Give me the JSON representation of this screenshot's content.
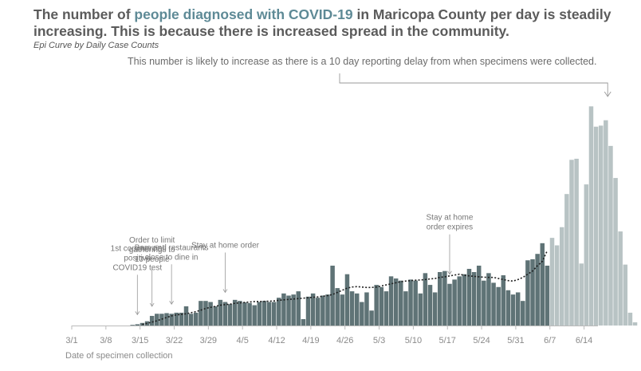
{
  "header": {
    "headline_pre": "The number of ",
    "headline_highlight": "people diagnosed with COVID-19",
    "headline_post": " in Maricopa County per day is steadily increasing. This is because there is increased spread in the community.",
    "subtitle": "Epi Curve by Daily Case Counts",
    "delay_note": "This number is likely to increase as there is a 10 day reporting delay from when specimens were collected."
  },
  "colors": {
    "bar": "#5f7376",
    "bar_delayed": "#b8c3c4",
    "moving_average": "#1f1f1f",
    "highlight": "#5e8a96"
  },
  "chart_data": {
    "type": "bar",
    "title": "Epi Curve by Daily Case Counts",
    "xlabel": "Date of specimen collection",
    "ylabel": "",
    "x_tick_labels": [
      "3/1",
      "3/8",
      "3/15",
      "3/22",
      "3/29",
      "4/5",
      "4/12",
      "4/19",
      "4/26",
      "5/3",
      "5/10",
      "5/17",
      "5/24",
      "5/31",
      "6/7",
      "6/14"
    ],
    "start_date": "3/1",
    "ylim": [
      0,
      1000
    ],
    "values": [
      0,
      0,
      0,
      0,
      0,
      0,
      0,
      0,
      0,
      0,
      0,
      0,
      3,
      6,
      12,
      20,
      45,
      55,
      55,
      58,
      55,
      60,
      60,
      90,
      55,
      60,
      115,
      115,
      110,
      90,
      120,
      110,
      100,
      120,
      115,
      108,
      105,
      95,
      110,
      115,
      110,
      110,
      130,
      150,
      140,
      145,
      160,
      30,
      135,
      150,
      130,
      140,
      145,
      280,
      175,
      145,
      240,
      160,
      150,
      110,
      155,
      70,
      190,
      180,
      160,
      230,
      220,
      210,
      160,
      215,
      210,
      150,
      245,
      190,
      155,
      250,
      255,
      195,
      215,
      230,
      240,
      265,
      250,
      280,
      210,
      245,
      200,
      180,
      235,
      165,
      145,
      155,
      115,
      305,
      310,
      335,
      385,
      280,
      410,
      375,
      460,
      615,
      775,
      780,
      290,
      660,
      1025,
      930,
      935,
      960,
      840,
      690,
      440,
      285,
      60,
      15
    ],
    "delayed_from_index": 98,
    "moving_average": [
      null,
      null,
      null,
      null,
      null,
      null,
      null,
      null,
      null,
      null,
      null,
      null,
      null,
      null,
      5,
      10,
      16,
      22,
      30,
      38,
      45,
      50,
      52,
      55,
      60,
      65,
      72,
      80,
      85,
      90,
      95,
      98,
      100,
      104,
      106,
      108,
      110,
      112,
      112,
      113,
      114,
      115,
      118,
      120,
      122,
      124,
      126,
      128,
      130,
      132,
      134,
      137,
      140,
      145,
      155,
      165,
      175,
      180,
      182,
      180,
      178,
      178,
      180,
      185,
      190,
      195,
      200,
      205,
      208,
      210,
      212,
      213,
      215,
      218,
      220,
      225,
      228,
      232,
      236,
      240,
      235,
      232,
      230,
      228,
      226,
      225,
      225,
      220,
      215,
      210,
      208,
      215,
      225,
      240,
      255,
      280,
      300,
      350,
      null
    ],
    "annotations": [
      {
        "text": [
          "1st commercial",
          "positive",
          "COVID19 test"
        ],
        "index": 13
      },
      {
        "text": [
          "Order to limit",
          "gatherings to",
          "10 people"
        ],
        "index": 16
      },
      {
        "text": [
          "Bars and restaurants",
          "close to dine in"
        ],
        "index": 20
      },
      {
        "text": [
          "Stay at home order"
        ],
        "index": 31
      },
      {
        "text": [
          "Stay at home",
          "order expires"
        ],
        "index": 77
      }
    ]
  }
}
